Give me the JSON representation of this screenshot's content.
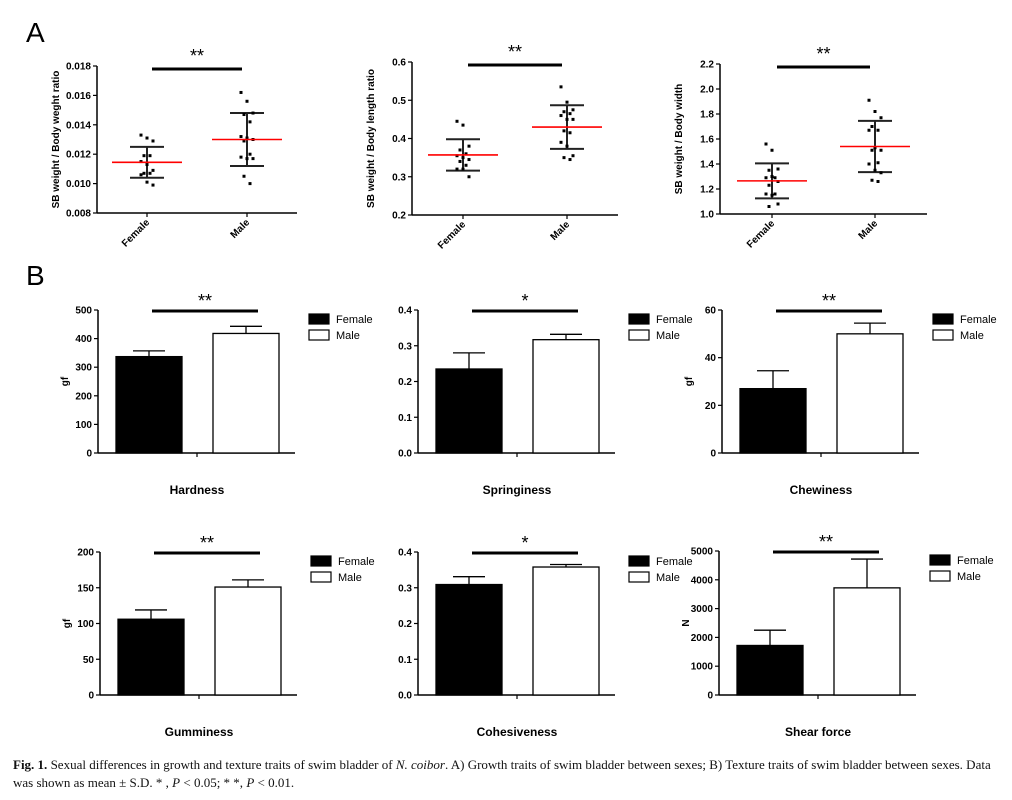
{
  "panels": [
    "A",
    "B"
  ],
  "caption": {
    "label": "Fig. 1.",
    "text1": " Sexual differences in growth and texture traits of swim bladder of ",
    "species": "N. coibor",
    "text2": ". A) Growth traits of swim bladder between sexes; B) Texture traits of swim bladder between sexes. Data was shown as mean ± S.D. * , ",
    "p1": "P",
    "text3": " < 0.05; * *, ",
    "p2": "P",
    "text4": " < 0.01."
  },
  "colors": {
    "mean_line": "#ff0000",
    "female_bar": "#000000",
    "male_bar": "#ffffff",
    "axis": "#000000"
  },
  "chart_data": [
    {
      "type": "scatter",
      "panel": "A",
      "ylabel": "SB weight  / Body weght ratio",
      "categories": [
        "Female",
        "Male"
      ],
      "ylim": [
        0.008,
        0.018
      ],
      "yticks": [
        "0.008",
        "0.010",
        "0.012",
        "0.014",
        "0.016",
        "0.018"
      ],
      "significance": "**",
      "series": [
        {
          "category": "Female",
          "values": [
            0.0133,
            0.0131,
            0.0129,
            0.0119,
            0.0119,
            0.0115,
            0.0113,
            0.0109,
            0.0107,
            0.0107,
            0.0106,
            0.0101,
            0.0099
          ],
          "mean": 0.01145,
          "sd": 0.00105
        },
        {
          "category": "Male",
          "values": [
            0.0162,
            0.0156,
            0.0148,
            0.0147,
            0.0142,
            0.0132,
            0.0131,
            0.013,
            0.0129,
            0.012,
            0.0118,
            0.0117,
            0.0117,
            0.0105,
            0.01
          ],
          "mean": 0.013,
          "sd": 0.0018
        }
      ]
    },
    {
      "type": "scatter",
      "panel": "A",
      "ylabel": "SB weight / Body length ratio",
      "categories": [
        "Female",
        "Male"
      ],
      "ylim": [
        0.2,
        0.6
      ],
      "yticks": [
        "0.2",
        "0.3",
        "0.4",
        "0.5",
        "0.6"
      ],
      "significance": "**",
      "series": [
        {
          "category": "Female",
          "values": [
            0.445,
            0.435,
            0.38,
            0.37,
            0.36,
            0.355,
            0.35,
            0.345,
            0.34,
            0.33,
            0.32,
            0.32,
            0.3
          ],
          "mean": 0.357,
          "sd": 0.041
        },
        {
          "category": "Male",
          "values": [
            0.535,
            0.495,
            0.475,
            0.47,
            0.465,
            0.46,
            0.45,
            0.45,
            0.42,
            0.415,
            0.39,
            0.38,
            0.355,
            0.35,
            0.345
          ],
          "mean": 0.43,
          "sd": 0.057
        }
      ]
    },
    {
      "type": "scatter",
      "panel": "A",
      "ylabel": "SB weight / Body width",
      "categories": [
        "Female",
        "Male"
      ],
      "ylim": [
        1.0,
        2.2
      ],
      "yticks": [
        "1.0",
        "1.2",
        "1.4",
        "1.6",
        "1.8",
        "2.0",
        "2.2"
      ],
      "significance": "**",
      "series": [
        {
          "category": "Female",
          "values": [
            1.56,
            1.51,
            1.36,
            1.35,
            1.29,
            1.29,
            1.3,
            1.26,
            1.23,
            1.16,
            1.16,
            1.15,
            1.08,
            1.06
          ],
          "mean": 1.265,
          "sd": 0.14
        },
        {
          "category": "Male",
          "values": [
            1.91,
            1.82,
            1.77,
            1.7,
            1.67,
            1.67,
            1.53,
            1.51,
            1.51,
            1.41,
            1.4,
            1.35,
            1.33,
            1.27,
            1.26
          ],
          "mean": 1.54,
          "sd": 0.205
        }
      ]
    },
    {
      "type": "bar",
      "panel": "B",
      "xlabel": "Hardness",
      "ylabel": "gf",
      "ylim": [
        0,
        500
      ],
      "yticks": [
        "0",
        "100",
        "200",
        "300",
        "400",
        "500"
      ],
      "significance": "**",
      "series": [
        {
          "name": "Female",
          "value": 337,
          "sd": 20
        },
        {
          "name": "Male",
          "value": 418,
          "sd": 25
        }
      ]
    },
    {
      "type": "bar",
      "panel": "B",
      "xlabel": "Springiness",
      "ylabel": "",
      "ylim": [
        0,
        0.4
      ],
      "yticks": [
        "0.0",
        "0.1",
        "0.2",
        "0.3",
        "0.4"
      ],
      "significance": "*",
      "series": [
        {
          "name": "Female",
          "value": 0.235,
          "sd": 0.045
        },
        {
          "name": "Male",
          "value": 0.317,
          "sd": 0.015
        }
      ]
    },
    {
      "type": "bar",
      "panel": "B",
      "xlabel": "Chewiness",
      "ylabel": "gf",
      "ylim": [
        0,
        60
      ],
      "yticks": [
        "0",
        "20",
        "40",
        "60"
      ],
      "significance": "**",
      "series": [
        {
          "name": "Female",
          "value": 27,
          "sd": 7.5
        },
        {
          "name": "Male",
          "value": 50,
          "sd": 4.5
        }
      ]
    },
    {
      "type": "bar",
      "panel": "B",
      "xlabel": "Gumminess",
      "ylabel": "gf",
      "ylim": [
        0,
        200
      ],
      "yticks": [
        "0",
        "50",
        "100",
        "150",
        "200"
      ],
      "significance": "**",
      "series": [
        {
          "name": "Female",
          "value": 106,
          "sd": 13
        },
        {
          "name": "Male",
          "value": 151,
          "sd": 10
        }
      ]
    },
    {
      "type": "bar",
      "panel": "B",
      "xlabel": "Cohesiveness",
      "ylabel": "",
      "ylim": [
        0,
        0.4
      ],
      "yticks": [
        "0.0",
        "0.1",
        "0.2",
        "0.3",
        "0.4"
      ],
      "significance": "*",
      "series": [
        {
          "name": "Female",
          "value": 0.309,
          "sd": 0.022
        },
        {
          "name": "Male",
          "value": 0.358,
          "sd": 0.007
        }
      ]
    },
    {
      "type": "bar",
      "panel": "B",
      "xlabel": "Shear force",
      "ylabel": "N",
      "ylim": [
        0,
        5000
      ],
      "yticks": [
        "0",
        "1000",
        "2000",
        "3000",
        "4000",
        "5000"
      ],
      "significance": "**",
      "series": [
        {
          "name": "Female",
          "value": 1720,
          "sd": 530
        },
        {
          "name": "Male",
          "value": 3720,
          "sd": 1000
        }
      ]
    }
  ]
}
